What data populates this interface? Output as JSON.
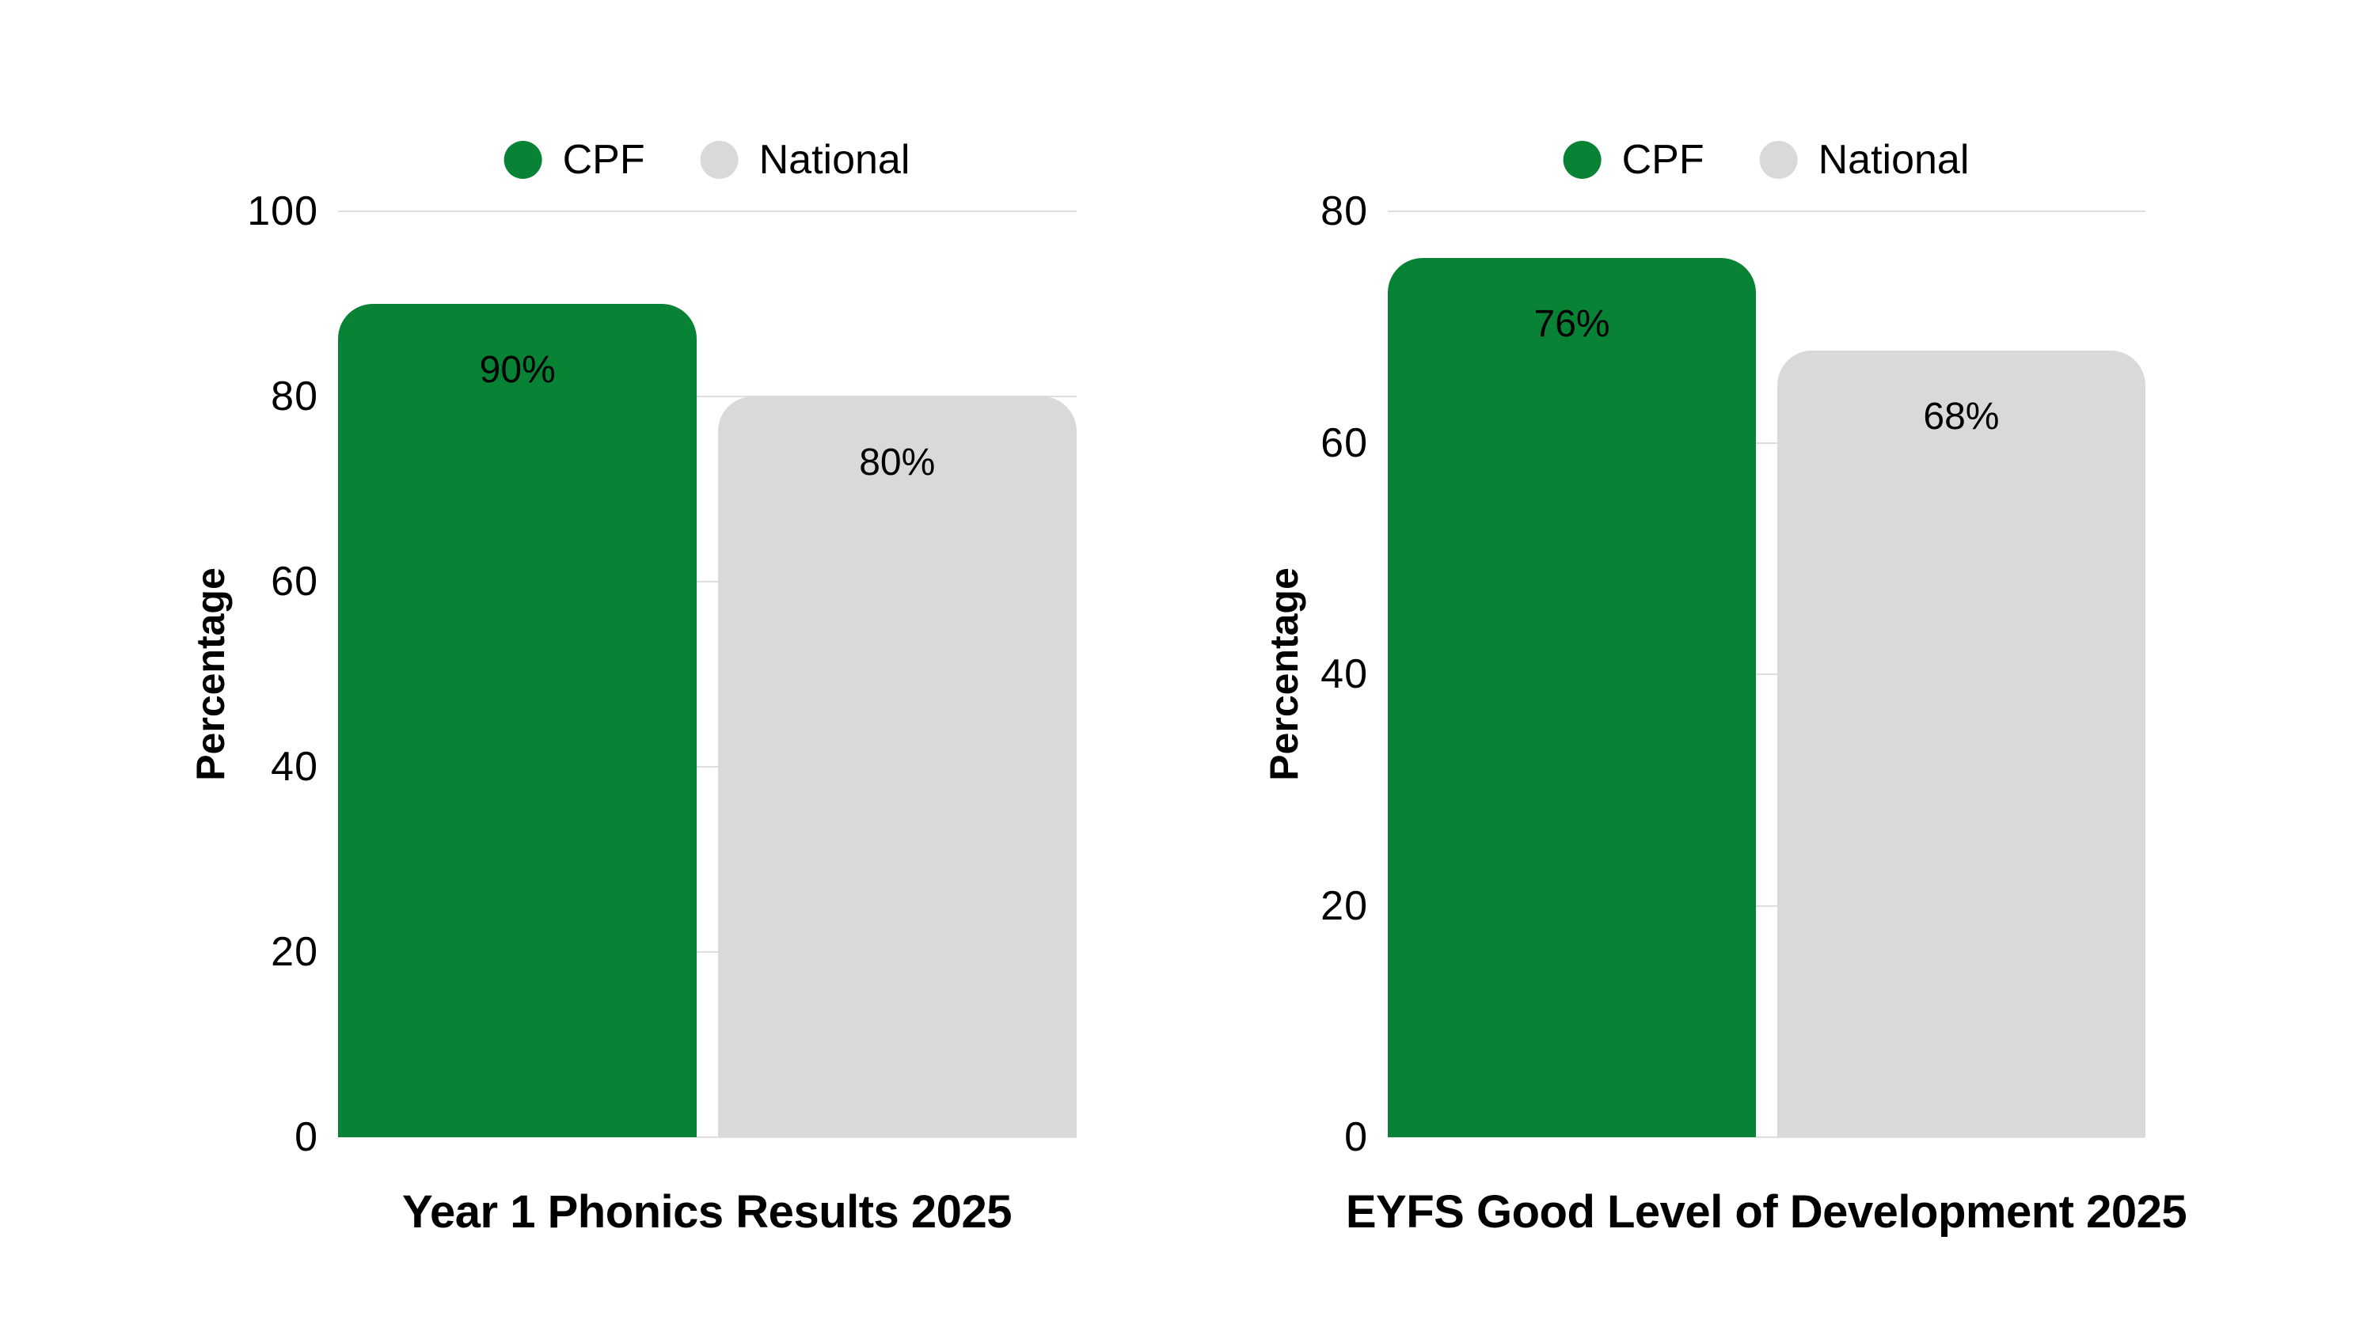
{
  "page": {
    "background": "#FFFFFF"
  },
  "colors": {
    "cpf_green": "#088234",
    "national_grey": "#D9D9D9",
    "gridline": "#DEDEDE",
    "text": "#000000"
  },
  "chart_data": [
    {
      "type": "bar",
      "title": "Year 1 Phonics Results 2025",
      "ylabel": "Percentage",
      "xlabel": "",
      "categories": [
        "CPF",
        "National"
      ],
      "values": [
        90,
        80
      ],
      "data_labels": [
        "90%",
        "80%"
      ],
      "ylim": [
        0,
        100
      ],
      "yticks": [
        100,
        80,
        60,
        40,
        20,
        0
      ],
      "grid": true,
      "legend": [
        "CPF",
        "National"
      ],
      "legend_position": "top",
      "bar_colors": [
        "#088234",
        "#D9D9D9"
      ]
    },
    {
      "type": "bar",
      "title": "EYFS Good Level of Development 2025",
      "ylabel": "Percentage",
      "xlabel": "",
      "categories": [
        "CPF",
        "National"
      ],
      "values": [
        76,
        68
      ],
      "data_labels": [
        "76%",
        "68%"
      ],
      "ylim": [
        0,
        80
      ],
      "yticks": [
        80,
        60,
        40,
        20,
        0
      ],
      "grid": true,
      "legend": [
        "CPF",
        "National"
      ],
      "legend_position": "top",
      "bar_colors": [
        "#088234",
        "#D9D9D9"
      ]
    }
  ]
}
